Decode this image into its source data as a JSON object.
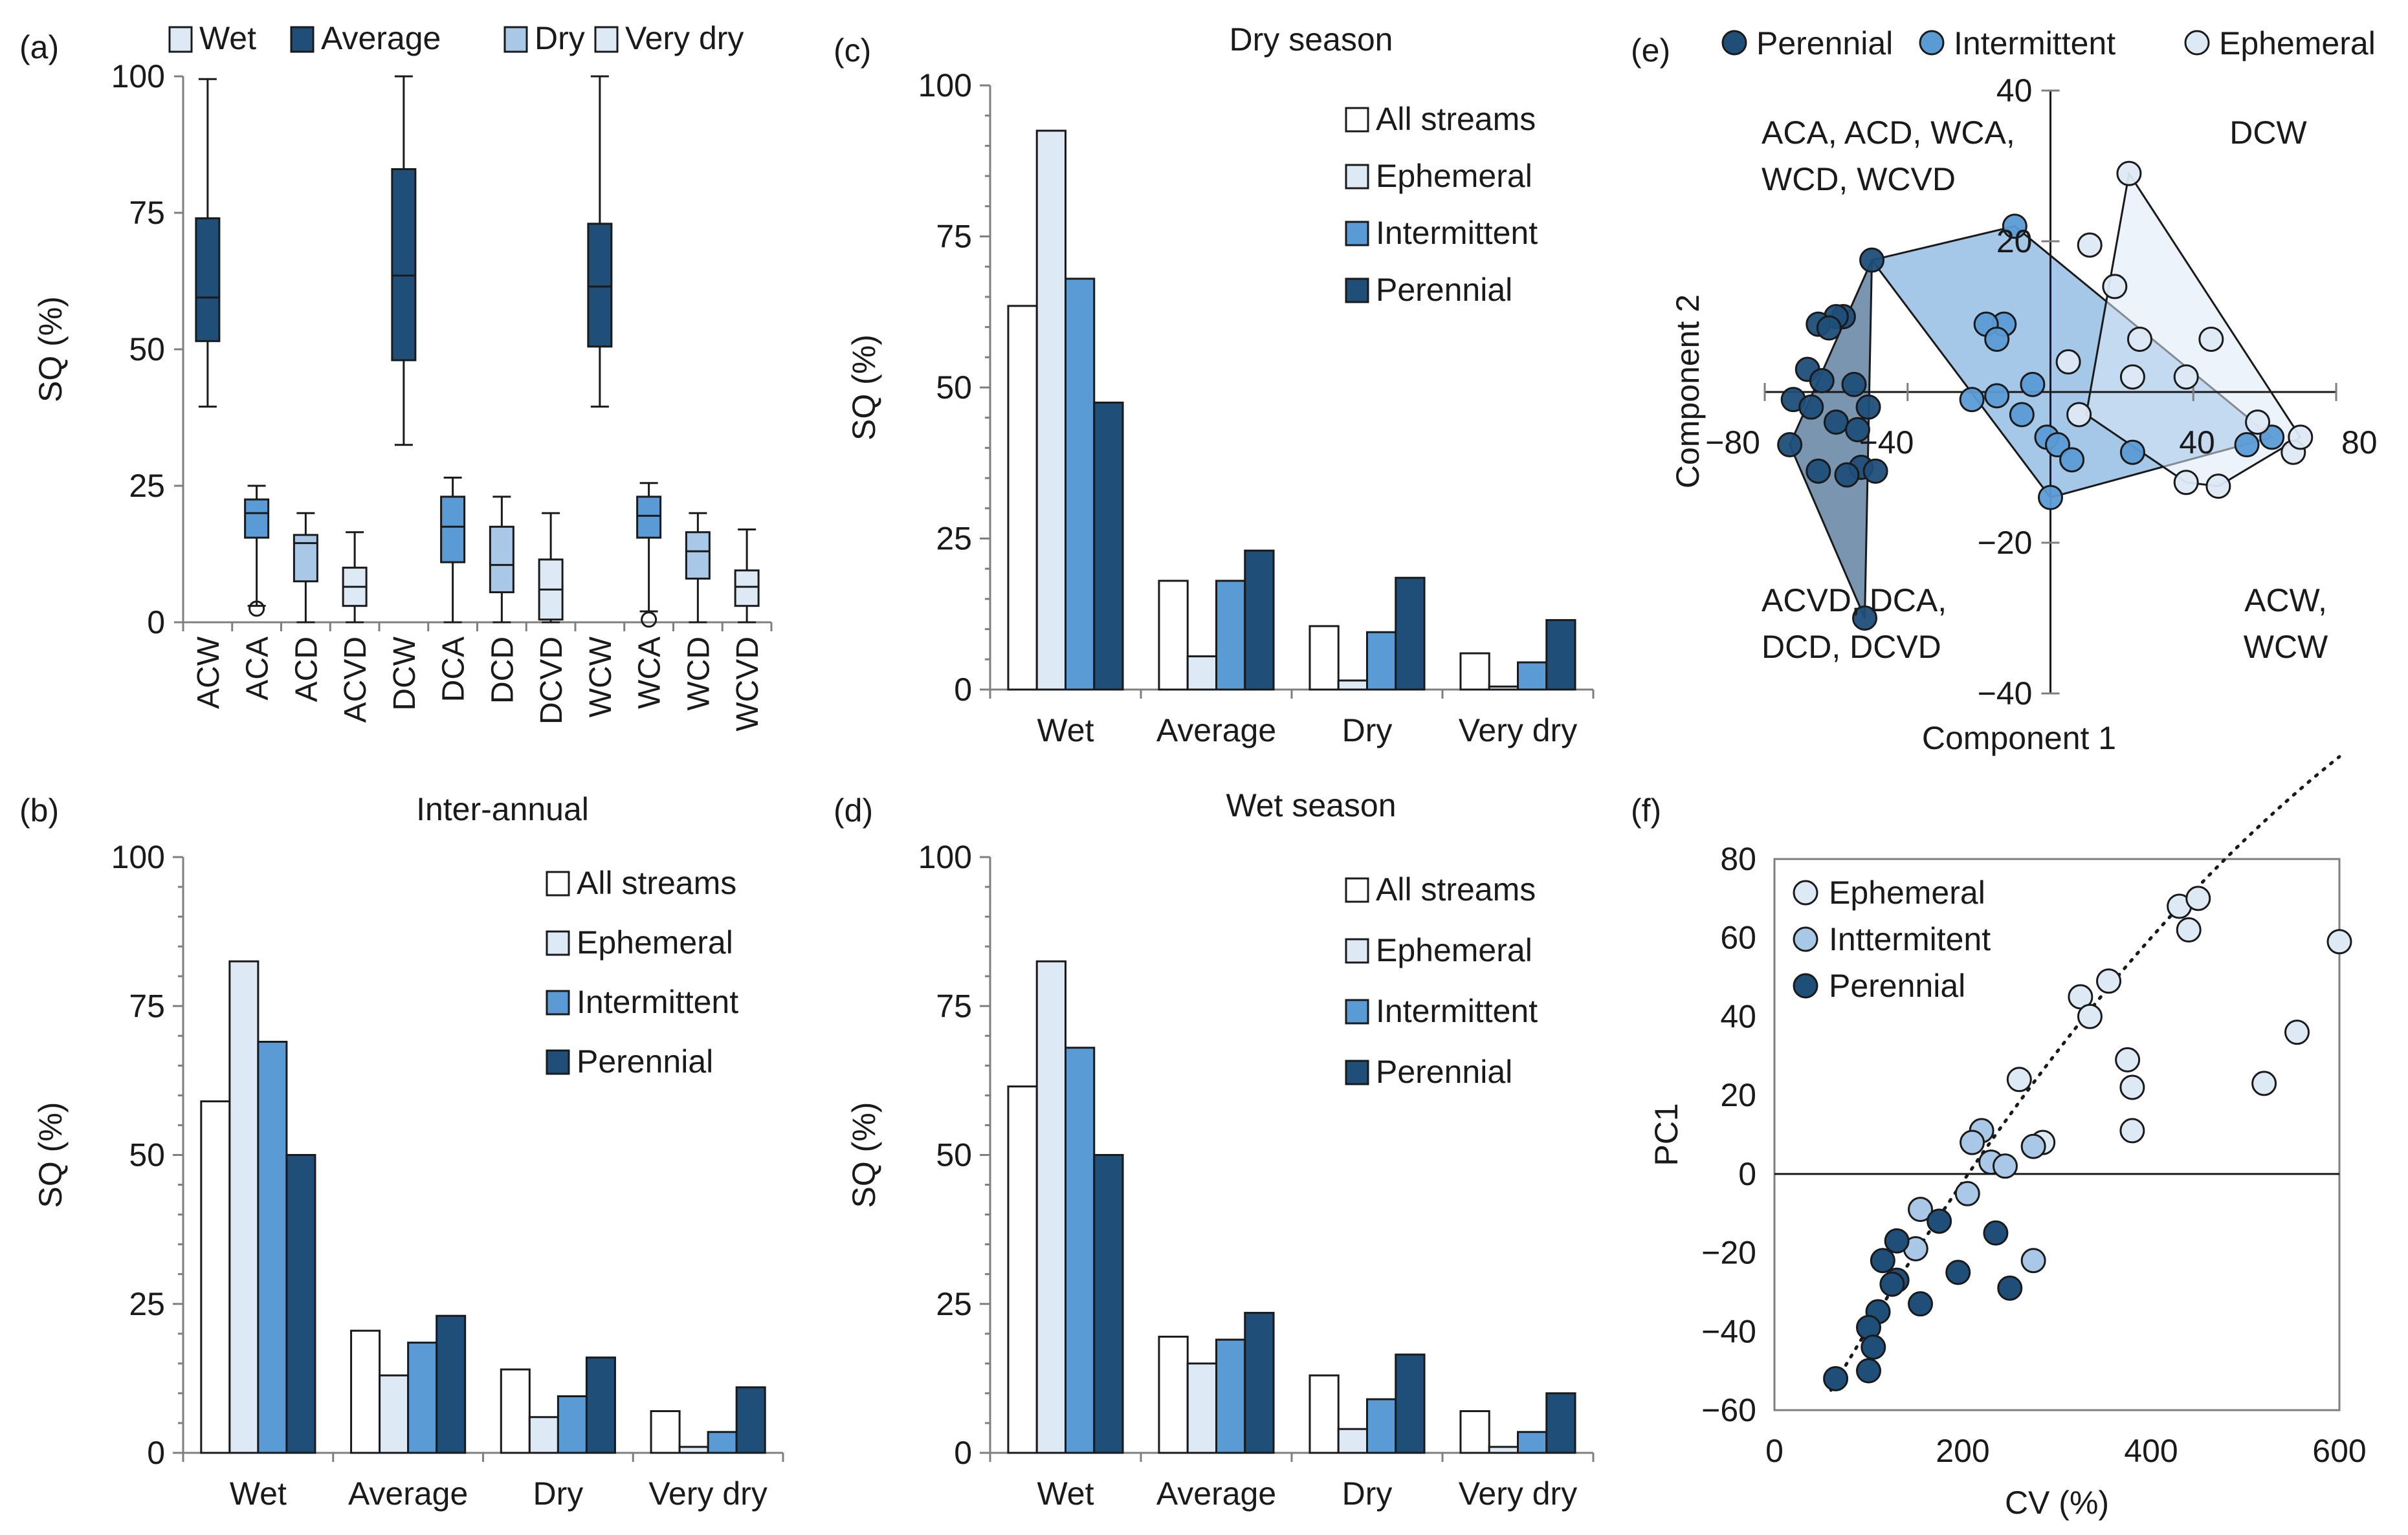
{
  "colors": {
    "white": "#ffffff",
    "light": "#dde9f5",
    "medium_light": "#a9c8e8",
    "medium": "#5b9bd5",
    "dark": "#1f4e79",
    "axis": "#7f7f7f",
    "text": "#1a1a1a"
  },
  "chart_data": [
    {
      "panel": "(a)",
      "type": "box",
      "title": "",
      "xlabel": "",
      "ylabel": "SQ (%)",
      "ylim": [
        0,
        100
      ],
      "yticks": [
        0,
        25,
        50,
        75,
        100
      ],
      "legend": [
        "Wet",
        "Average",
        "Dry",
        "Very dry"
      ],
      "legend_colors": [
        "light",
        "dark",
        "medium_light",
        "light"
      ],
      "categories": [
        "ACW",
        "ACA",
        "ACD",
        "ACVD",
        "DCW",
        "DCA",
        "DCD",
        "DCVD",
        "WCW",
        "WCA",
        "WCD",
        "WCVD"
      ],
      "boxes": [
        {
          "category": "ACW",
          "whisker_low": 39.5,
          "q1": 51.5,
          "median": 59.5,
          "q3": 74,
          "whisker_high": 99.5,
          "outliers": [],
          "color": "dark"
        },
        {
          "category": "ACA",
          "whisker_low": 3,
          "q1": 15.5,
          "median": 20,
          "q3": 22.5,
          "whisker_high": 25,
          "outliers": [
            2.5
          ],
          "color": "medium"
        },
        {
          "category": "ACD",
          "whisker_low": 0,
          "q1": 7.5,
          "median": 14.5,
          "q3": 16,
          "whisker_high": 20,
          "outliers": [],
          "color": "medium_light"
        },
        {
          "category": "ACVD",
          "whisker_low": 0,
          "q1": 3,
          "median": 6.5,
          "q3": 10,
          "whisker_high": 16.5,
          "outliers": [],
          "color": "light"
        },
        {
          "category": "DCW",
          "whisker_low": 32.5,
          "q1": 48,
          "median": 63.5,
          "q3": 83,
          "whisker_high": 100,
          "outliers": [],
          "color": "dark"
        },
        {
          "category": "DCA",
          "whisker_low": 0,
          "q1": 11,
          "median": 17.5,
          "q3": 23,
          "whisker_high": 26.5,
          "outliers": [],
          "color": "medium"
        },
        {
          "category": "DCD",
          "whisker_low": 0,
          "q1": 5.5,
          "median": 10.5,
          "q3": 17.5,
          "whisker_high": 23,
          "outliers": [],
          "color": "medium_light"
        },
        {
          "category": "DCVD",
          "whisker_low": 0,
          "q1": 0.5,
          "median": 6,
          "q3": 11.5,
          "whisker_high": 20,
          "outliers": [],
          "color": "light"
        },
        {
          "category": "WCW",
          "whisker_low": 39.5,
          "q1": 50.5,
          "median": 61.5,
          "q3": 73,
          "whisker_high": 100,
          "outliers": [],
          "color": "dark"
        },
        {
          "category": "WCA",
          "whisker_low": 2,
          "q1": 15.5,
          "median": 19.5,
          "q3": 23,
          "whisker_high": 25.5,
          "outliers": [
            0.5
          ],
          "color": "medium"
        },
        {
          "category": "WCD",
          "whisker_low": 0,
          "q1": 8,
          "median": 13,
          "q3": 16.5,
          "whisker_high": 20,
          "outliers": [],
          "color": "medium_light"
        },
        {
          "category": "WCVD",
          "whisker_low": 0,
          "q1": 3,
          "median": 6.5,
          "q3": 9.5,
          "whisker_high": 17,
          "outliers": [],
          "color": "light"
        }
      ]
    },
    {
      "panel": "(b)",
      "type": "bar",
      "title": "Inter-annual",
      "xlabel": "",
      "ylabel": "SQ (%)",
      "ylim": [
        0,
        100
      ],
      "yticks": [
        0,
        25,
        50,
        75,
        100
      ],
      "categories": [
        "Wet",
        "Average",
        "Dry",
        "Very dry"
      ],
      "legend_position": "top-right",
      "series": [
        {
          "name": "All streams",
          "color": "white",
          "values": [
            59,
            20.5,
            14,
            7
          ]
        },
        {
          "name": "Ephemeral",
          "color": "light",
          "values": [
            82.5,
            13,
            6,
            1
          ]
        },
        {
          "name": "Intermittent",
          "color": "medium",
          "values": [
            69,
            18.5,
            9.5,
            3.5
          ]
        },
        {
          "name": "Perennial",
          "color": "dark",
          "values": [
            50,
            23,
            16,
            11
          ]
        }
      ]
    },
    {
      "panel": "(c)",
      "type": "bar",
      "title": "Dry season",
      "xlabel": "",
      "ylabel": "SQ (%)",
      "ylim": [
        0,
        100
      ],
      "yticks": [
        0,
        25,
        50,
        75,
        100
      ],
      "categories": [
        "Wet",
        "Average",
        "Dry",
        "Very dry"
      ],
      "legend_position": "top-right",
      "series": [
        {
          "name": "All streams",
          "color": "white",
          "values": [
            63.5,
            18,
            10.5,
            6
          ]
        },
        {
          "name": "Ephemeral",
          "color": "light",
          "values": [
            92.5,
            5.5,
            1.5,
            0.5
          ]
        },
        {
          "name": "Intermittent",
          "color": "medium",
          "values": [
            68,
            18,
            9.5,
            4.5
          ]
        },
        {
          "name": "Perennial",
          "color": "dark",
          "values": [
            47.5,
            23,
            18.5,
            11.5
          ]
        }
      ]
    },
    {
      "panel": "(d)",
      "type": "bar",
      "title": "Wet season",
      "xlabel": "",
      "ylabel": "SQ (%)",
      "ylim": [
        0,
        100
      ],
      "yticks": [
        0,
        25,
        50,
        75,
        100
      ],
      "categories": [
        "Wet",
        "Average",
        "Dry",
        "Very dry"
      ],
      "legend_position": "top-right",
      "series": [
        {
          "name": "All streams",
          "color": "white",
          "values": [
            61.5,
            19.5,
            13,
            7
          ]
        },
        {
          "name": "Ephemeral",
          "color": "light",
          "values": [
            82.5,
            15,
            4,
            1
          ]
        },
        {
          "name": "Intermittent",
          "color": "medium",
          "values": [
            68,
            19,
            9,
            3.5
          ]
        },
        {
          "name": "Perennial",
          "color": "dark",
          "values": [
            50,
            23.5,
            16.5,
            10
          ]
        }
      ]
    },
    {
      "panel": "(e)",
      "type": "scatter",
      "title": "",
      "xlabel": "Component 1",
      "ylabel": "Component 2",
      "xlim": [
        -80,
        80
      ],
      "ylim": [
        -40,
        40
      ],
      "xticks": [
        -80,
        -40,
        40,
        80
      ],
      "yticks": [
        -40,
        -20,
        20,
        40
      ],
      "legend_position": "top",
      "quadrant_labels": {
        "upper_left": [
          "ACA, ACD, WCA,",
          "WCD, WCVD"
        ],
        "upper_right": [
          "DCW"
        ],
        "lower_left": [
          "ACVD, DCA,",
          "DCD, DCVD"
        ],
        "lower_right": [
          "ACW,",
          "WCW"
        ]
      },
      "series": [
        {
          "name": "Perennial",
          "color": "dark",
          "points": [
            [
              -50,
              17.5
            ],
            [
              -58,
              10
            ],
            [
              -60,
              10
            ],
            [
              -65,
              9
            ],
            [
              -62,
              8.5
            ],
            [
              -68,
              3
            ],
            [
              -64,
              1.5
            ],
            [
              -55,
              1
            ],
            [
              -72,
              -1
            ],
            [
              -67,
              -2
            ],
            [
              -51,
              -2
            ],
            [
              -60,
              -4
            ],
            [
              -54,
              -5
            ],
            [
              -73,
              -7
            ],
            [
              -53,
              -10
            ],
            [
              -57,
              -11
            ],
            [
              -65,
              -10.5
            ],
            [
              -49,
              -10.5
            ],
            [
              -52,
              -30
            ]
          ],
          "hull": [
            [
              -50,
              17.5
            ],
            [
              -73,
              -7
            ],
            [
              -52,
              -30
            ]
          ]
        },
        {
          "name": "Intermittent",
          "color": "medium",
          "points": [
            [
              -10,
              22
            ],
            [
              -13,
              9
            ],
            [
              -18,
              9
            ],
            [
              -15,
              7
            ],
            [
              -5,
              1
            ],
            [
              -15,
              -0.5
            ],
            [
              -8,
              -3
            ],
            [
              -22,
              -1
            ],
            [
              -1,
              -6
            ],
            [
              2,
              -7
            ],
            [
              6,
              -9
            ],
            [
              23,
              -8
            ],
            [
              0,
              -14
            ],
            [
              55,
              -7
            ],
            [
              62,
              -6
            ]
          ],
          "hull": [
            [
              -10,
              22
            ],
            [
              -50,
              17.5
            ],
            [
              0,
              -14
            ],
            [
              62,
              -6
            ]
          ]
        },
        {
          "name": "Ephemeral",
          "color": "light",
          "points": [
            [
              22,
              29
            ],
            [
              11,
              19.5
            ],
            [
              18,
              14
            ],
            [
              25,
              7
            ],
            [
              45,
              7
            ],
            [
              5,
              4
            ],
            [
              23,
              2
            ],
            [
              38,
              2
            ],
            [
              8,
              -3
            ],
            [
              58,
              -4
            ],
            [
              68,
              -8
            ],
            [
              70,
              -6
            ],
            [
              38,
              -12
            ],
            [
              47,
              -12.5
            ]
          ],
          "hull": [
            [
              22,
              29
            ],
            [
              70,
              -6
            ],
            [
              47,
              -12.5
            ],
            [
              38,
              -12
            ],
            [
              10,
              -3
            ]
          ]
        }
      ]
    },
    {
      "panel": "(f)",
      "type": "scatter",
      "title": "",
      "xlabel": "CV (%)",
      "ylabel": "PC1",
      "xlim": [
        0,
        600
      ],
      "ylim": [
        -60,
        80
      ],
      "xticks": [
        0,
        200,
        400,
        600
      ],
      "yticks": [
        -60,
        -40,
        -20,
        0,
        20,
        40,
        60,
        80
      ],
      "legend_position": "top-left",
      "trendline": "dotted polynomial",
      "trend_coefficients": [
        -80,
        0.43,
        -0.0002
      ],
      "series": [
        {
          "name": "Ephemeral",
          "color": "light",
          "points": [
            [
              600,
              59
            ],
            [
              430,
              68
            ],
            [
              450,
              70
            ],
            [
              440,
              62
            ],
            [
              355,
              49
            ],
            [
              325,
              45
            ],
            [
              335,
              40
            ],
            [
              555,
              36
            ],
            [
              520,
              23
            ],
            [
              375,
              29
            ],
            [
              380,
              22
            ],
            [
              380,
              11
            ],
            [
              260,
              24
            ],
            [
              285,
              8
            ]
          ]
        },
        {
          "name": "Inttermitent",
          "color": "medium_light",
          "points": [
            [
              220,
              11
            ],
            [
              210,
              8
            ],
            [
              230,
              3
            ],
            [
              245,
              2
            ],
            [
              275,
              7
            ],
            [
              205,
              -5
            ],
            [
              155,
              -9
            ],
            [
              150,
              -19
            ],
            [
              275,
              -22
            ]
          ]
        },
        {
          "name": "Perennial",
          "color": "dark",
          "points": [
            [
              175,
              -12
            ],
            [
              130,
              -17
            ],
            [
              235,
              -15
            ],
            [
              115,
              -22
            ],
            [
              130,
              -27
            ],
            [
              125,
              -28
            ],
            [
              195,
              -25
            ],
            [
              250,
              -29
            ],
            [
              155,
              -33
            ],
            [
              110,
              -35
            ],
            [
              100,
              -39
            ],
            [
              105,
              -44
            ],
            [
              100,
              -50
            ],
            [
              65,
              -52
            ]
          ]
        }
      ]
    }
  ]
}
